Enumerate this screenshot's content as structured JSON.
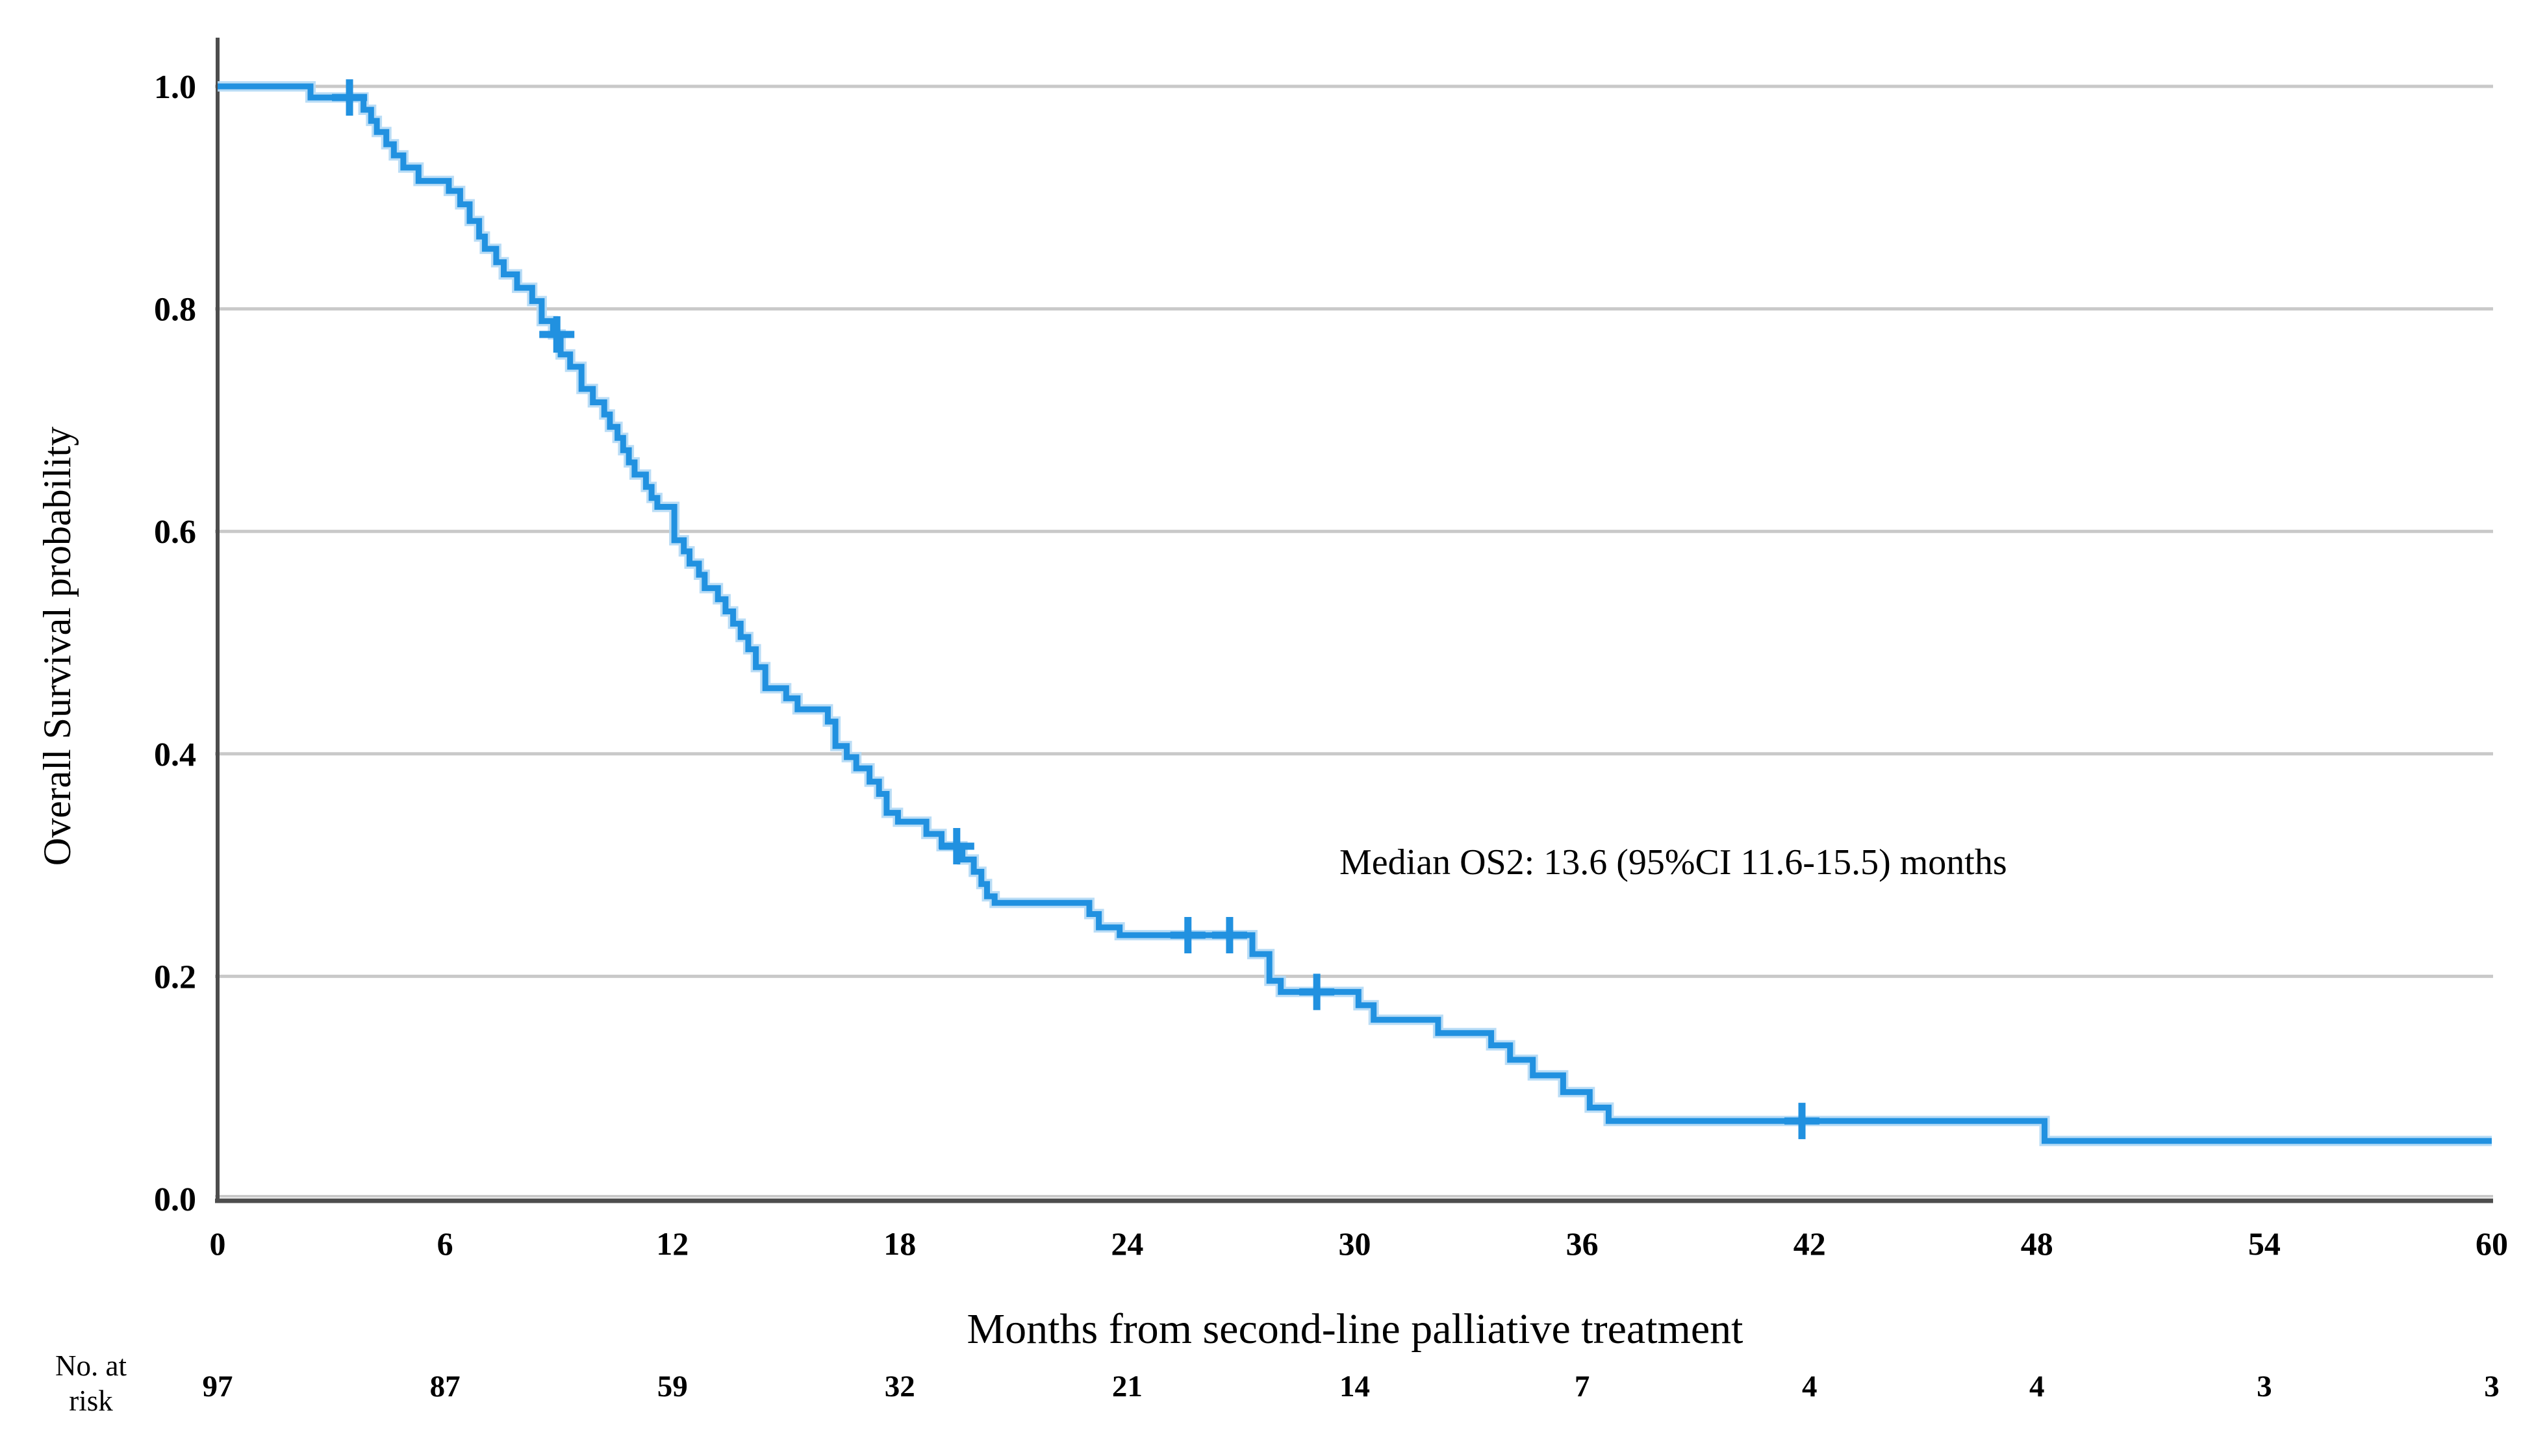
{
  "chart_data": {
    "type": "line",
    "subtype": "kaplan_meier_step",
    "title": "",
    "xlabel": "Months from second-line palliative treatment",
    "ylabel": "Overall Survival probability",
    "annotation": "Median OS2: 13.6 (95%CI 11.6-15.5) months",
    "xlim": [
      0,
      60
    ],
    "ylim": [
      0.0,
      1.0
    ],
    "xticks": [
      0,
      6,
      12,
      18,
      24,
      30,
      36,
      42,
      48,
      54,
      60
    ],
    "ytick_labels": [
      "0.0",
      "0.2",
      "0.4",
      "0.6",
      "0.8",
      "1.0"
    ],
    "ytick_values": [
      0.0,
      0.2,
      0.4,
      0.6,
      0.8,
      1.0
    ],
    "grid": "horizontal",
    "legend": "none",
    "series": [
      {
        "name": "OS2",
        "color": "#2191e0",
        "start": [
          0,
          1.0
        ],
        "steps": [
          [
            2.45,
            0.99
          ],
          [
            3.85,
            0.979
          ],
          [
            4.05,
            0.969
          ],
          [
            4.2,
            0.959
          ],
          [
            4.45,
            0.948
          ],
          [
            4.65,
            0.938
          ],
          [
            4.9,
            0.927
          ],
          [
            5.3,
            0.915
          ],
          [
            6.1,
            0.906
          ],
          [
            6.4,
            0.894
          ],
          [
            6.65,
            0.879
          ],
          [
            6.9,
            0.865
          ],
          [
            7.05,
            0.854
          ],
          [
            7.35,
            0.842
          ],
          [
            7.55,
            0.831
          ],
          [
            7.9,
            0.819
          ],
          [
            8.3,
            0.807
          ],
          [
            8.55,
            0.789
          ],
          [
            8.85,
            0.777
          ],
          [
            9.05,
            0.759
          ],
          [
            9.3,
            0.748
          ],
          [
            9.6,
            0.728
          ],
          [
            9.9,
            0.716
          ],
          [
            10.2,
            0.705
          ],
          [
            10.35,
            0.694
          ],
          [
            10.55,
            0.684
          ],
          [
            10.7,
            0.673
          ],
          [
            10.85,
            0.662
          ],
          [
            11.0,
            0.651
          ],
          [
            11.3,
            0.64
          ],
          [
            11.45,
            0.63
          ],
          [
            11.6,
            0.622
          ],
          [
            12.05,
            0.592
          ],
          [
            12.3,
            0.582
          ],
          [
            12.45,
            0.571
          ],
          [
            12.7,
            0.561
          ],
          [
            12.85,
            0.549
          ],
          [
            13.2,
            0.539
          ],
          [
            13.4,
            0.528
          ],
          [
            13.6,
            0.517
          ],
          [
            13.8,
            0.505
          ],
          [
            14.0,
            0.494
          ],
          [
            14.2,
            0.478
          ],
          [
            14.45,
            0.459
          ],
          [
            15.0,
            0.45
          ],
          [
            15.3,
            0.44
          ],
          [
            16.1,
            0.429
          ],
          [
            16.3,
            0.407
          ],
          [
            16.6,
            0.397
          ],
          [
            16.85,
            0.387
          ],
          [
            17.2,
            0.375
          ],
          [
            17.45,
            0.364
          ],
          [
            17.65,
            0.347
          ],
          [
            17.95,
            0.339
          ],
          [
            18.7,
            0.328
          ],
          [
            19.1,
            0.317
          ],
          [
            19.65,
            0.305
          ],
          [
            19.95,
            0.294
          ],
          [
            20.15,
            0.283
          ],
          [
            20.3,
            0.272
          ],
          [
            20.5,
            0.266
          ],
          [
            23.0,
            0.256
          ],
          [
            23.25,
            0.244
          ],
          [
            23.8,
            0.237
          ],
          [
            27.3,
            0.22
          ],
          [
            27.75,
            0.196
          ],
          [
            28.05,
            0.186
          ],
          [
            30.1,
            0.174
          ],
          [
            30.5,
            0.161
          ],
          [
            32.2,
            0.149
          ],
          [
            33.6,
            0.138
          ],
          [
            34.1,
            0.125
          ],
          [
            34.7,
            0.111
          ],
          [
            35.5,
            0.096
          ],
          [
            36.2,
            0.082
          ],
          [
            36.7,
            0.07
          ],
          [
            48.2,
            0.052
          ]
        ],
        "censors": [
          [
            3.48,
            0.99
          ],
          [
            8.95,
            0.777
          ],
          [
            19.5,
            0.317
          ],
          [
            25.6,
            0.237
          ],
          [
            26.7,
            0.237
          ],
          [
            29.0,
            0.186
          ],
          [
            41.8,
            0.07
          ]
        ]
      }
    ],
    "at_risk": {
      "label_line1": "No. at",
      "label_line2": "risk",
      "times": [
        0,
        6,
        12,
        18,
        24,
        30,
        36,
        42,
        48,
        54,
        60
      ],
      "values": [
        97,
        87,
        59,
        32,
        21,
        14,
        7,
        4,
        4,
        3,
        3
      ]
    }
  },
  "colors": {
    "curve": "#2191e0",
    "curve_halo": "#b3d9f5",
    "grid": "#c9c9c9",
    "axis": "#4d4d4d",
    "text": "#000000",
    "background": "#ffffff"
  }
}
